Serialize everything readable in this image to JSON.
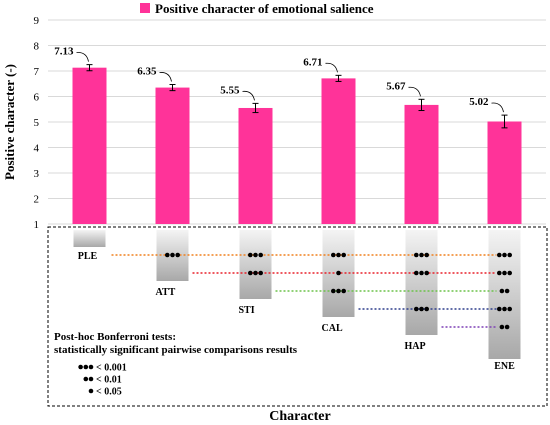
{
  "chart_data": {
    "type": "bar",
    "legend": {
      "label": "Positive character of emotional salience",
      "color": "#ff3399",
      "placement": "top"
    },
    "ylabel": "Positive character  (-)",
    "xlabel": "Character",
    "ylim": [
      1,
      9
    ],
    "yticks": [
      "1",
      "2",
      "3",
      "4",
      "5",
      "6",
      "7",
      "8",
      "9"
    ],
    "categories": [
      "PLE",
      "ATT",
      "STI",
      "CAL",
      "HAP",
      "ENE"
    ],
    "values": [
      7.13,
      6.35,
      5.55,
      6.71,
      5.67,
      5.02
    ],
    "value_labels": [
      "7.13",
      "6.35",
      "5.55",
      "6.71",
      "5.67",
      "5.02"
    ],
    "error": [
      0.12,
      0.12,
      0.18,
      0.12,
      0.22,
      0.25
    ],
    "bar_color": "#ff3399"
  },
  "comparisons": {
    "caption_line1": "Post-hoc Bonferroni tests:",
    "caption_line2": "statistically significant pairwise comparisons results",
    "legend": [
      {
        "dots": 3,
        "label": "< 0.001"
      },
      {
        "dots": 2,
        "label": "< 0.01"
      },
      {
        "dots": 1,
        "label": "< 0.05"
      }
    ],
    "rows": [
      {
        "ref": "PLE",
        "color": "#f0801e",
        "marks": [
          {
            "target": "ATT",
            "dots": 3
          },
          {
            "target": "STI",
            "dots": 3
          },
          {
            "target": "CAL",
            "dots": 3
          },
          {
            "target": "HAP",
            "dots": 3
          },
          {
            "target": "ENE",
            "dots": 3
          }
        ]
      },
      {
        "ref": "ATT",
        "color": "#e8202a",
        "marks": [
          {
            "target": "STI",
            "dots": 3
          },
          {
            "target": "CAL",
            "dots": 1
          },
          {
            "target": "HAP",
            "dots": 3
          },
          {
            "target": "ENE",
            "dots": 3
          }
        ]
      },
      {
        "ref": "STI",
        "color": "#6cc24a",
        "marks": [
          {
            "target": "CAL",
            "dots": 3
          },
          {
            "target": "ENE",
            "dots": 2
          }
        ]
      },
      {
        "ref": "CAL",
        "color": "#2e3e8c",
        "marks": [
          {
            "target": "HAP",
            "dots": 3
          },
          {
            "target": "ENE",
            "dots": 3
          }
        ]
      },
      {
        "ref": "HAP",
        "color": "#7d3fb5",
        "marks": [
          {
            "target": "ENE",
            "dots": 2
          }
        ]
      }
    ]
  }
}
